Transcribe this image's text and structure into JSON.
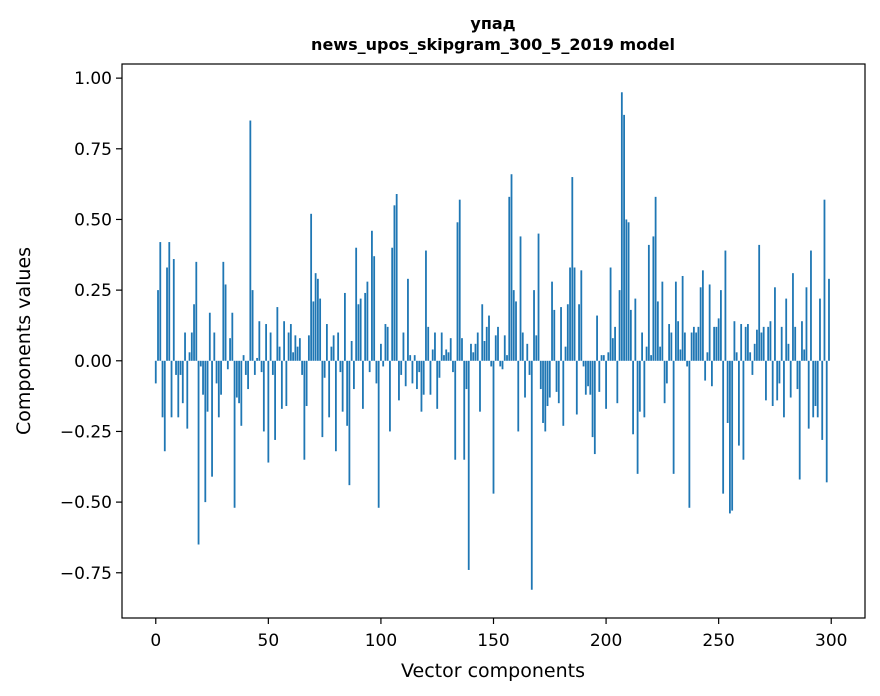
{
  "chart_data": {
    "type": "bar",
    "title": "упад",
    "subtitle": "news_upos_skipgram_300_5_2019 model",
    "xlabel": "Vector components",
    "ylabel": "Components values",
    "xlim": [
      -15,
      315
    ],
    "ylim": [
      -0.91,
      1.05
    ],
    "x_ticks": [
      0,
      50,
      100,
      150,
      200,
      250,
      300
    ],
    "y_ticks": [
      -0.75,
      -0.5,
      -0.25,
      0.0,
      0.25,
      0.5,
      0.75,
      1.0
    ],
    "x_tick_labels": [
      "0",
      "50",
      "100",
      "150",
      "200",
      "250",
      "300"
    ],
    "y_tick_labels": [
      "−0.75",
      "−0.50",
      "−0.25",
      "0.00",
      "0.25",
      "0.50",
      "0.75",
      "1.00"
    ],
    "bar_color": "#1f77b4",
    "grid": false,
    "x": [
      0,
      1,
      2,
      3,
      4,
      5,
      6,
      7,
      8,
      9,
      10,
      11,
      12,
      13,
      14,
      15,
      16,
      17,
      18,
      19,
      20,
      21,
      22,
      23,
      24,
      25,
      26,
      27,
      28,
      29,
      30,
      31,
      32,
      33,
      34,
      35,
      36,
      37,
      38,
      39,
      40,
      41,
      42,
      43,
      44,
      45,
      46,
      47,
      48,
      49,
      50,
      51,
      52,
      53,
      54,
      55,
      56,
      57,
      58,
      59,
      60,
      61,
      62,
      63,
      64,
      65,
      66,
      67,
      68,
      69,
      70,
      71,
      72,
      73,
      74,
      75,
      76,
      77,
      78,
      79,
      80,
      81,
      82,
      83,
      84,
      85,
      86,
      87,
      88,
      89,
      90,
      91,
      92,
      93,
      94,
      95,
      96,
      97,
      98,
      99,
      100,
      101,
      102,
      103,
      104,
      105,
      106,
      107,
      108,
      109,
      110,
      111,
      112,
      113,
      114,
      115,
      116,
      117,
      118,
      119,
      120,
      121,
      122,
      123,
      124,
      125,
      126,
      127,
      128,
      129,
      130,
      131,
      132,
      133,
      134,
      135,
      136,
      137,
      138,
      139,
      140,
      141,
      142,
      143,
      144,
      145,
      146,
      147,
      148,
      149,
      150,
      151,
      152,
      153,
      154,
      155,
      156,
      157,
      158,
      159,
      160,
      161,
      162,
      163,
      164,
      165,
      166,
      167,
      168,
      169,
      170,
      171,
      172,
      173,
      174,
      175,
      176,
      177,
      178,
      179,
      180,
      181,
      182,
      183,
      184,
      185,
      186,
      187,
      188,
      189,
      190,
      191,
      192,
      193,
      194,
      195,
      196,
      197,
      198,
      199,
      200,
      201,
      202,
      203,
      204,
      205,
      206,
      207,
      208,
      209,
      210,
      211,
      212,
      213,
      214,
      215,
      216,
      217,
      218,
      219,
      220,
      221,
      222,
      223,
      224,
      225,
      226,
      227,
      228,
      229,
      230,
      231,
      232,
      233,
      234,
      235,
      236,
      237,
      238,
      239,
      240,
      241,
      242,
      243,
      244,
      245,
      246,
      247,
      248,
      249,
      250,
      251,
      252,
      253,
      254,
      255,
      256,
      257,
      258,
      259,
      260,
      261,
      262,
      263,
      264,
      265,
      266,
      267,
      268,
      269,
      270,
      271,
      272,
      273,
      274,
      275,
      276,
      277,
      278,
      279,
      280,
      281,
      282,
      283,
      284,
      285,
      286,
      287,
      288,
      289,
      290,
      291,
      292,
      293,
      294,
      295,
      296,
      297,
      298,
      299
    ],
    "values": [
      -0.08,
      0.25,
      0.42,
      -0.2,
      -0.32,
      0.33,
      0.42,
      -0.2,
      0.36,
      -0.05,
      -0.2,
      -0.05,
      -0.15,
      0.1,
      -0.24,
      0.03,
      0.1,
      0.2,
      0.35,
      -0.65,
      -0.02,
      -0.12,
      -0.5,
      -0.18,
      0.17,
      -0.41,
      0.1,
      -0.08,
      -0.2,
      -0.12,
      0.35,
      0.27,
      -0.03,
      0.08,
      0.17,
      -0.52,
      -0.13,
      -0.15,
      -0.23,
      0.02,
      -0.05,
      -0.1,
      0.85,
      0.25,
      -0.05,
      0.01,
      0.14,
      -0.04,
      -0.25,
      0.13,
      -0.36,
      0.1,
      -0.05,
      -0.28,
      0.19,
      0.05,
      -0.17,
      0.14,
      -0.16,
      0.1,
      0.13,
      0.03,
      0.09,
      0.05,
      0.08,
      -0.05,
      -0.35,
      -0.16,
      0.09,
      0.52,
      0.21,
      0.31,
      0.29,
      0.22,
      -0.27,
      -0.06,
      0.13,
      -0.2,
      0.05,
      0.09,
      -0.32,
      0.1,
      -0.04,
      -0.18,
      0.24,
      -0.23,
      -0.44,
      0.07,
      -0.1,
      0.4,
      0.2,
      0.22,
      -0.17,
      0.24,
      0.28,
      -0.04,
      0.46,
      0.37,
      -0.08,
      -0.52,
      0.06,
      -0.02,
      0.13,
      0.12,
      -0.25,
      0.4,
      0.55,
      0.59,
      -0.14,
      -0.05,
      0.1,
      -0.09,
      0.29,
      0.02,
      -0.08,
      0.02,
      -0.1,
      -0.04,
      -0.18,
      -0.12,
      0.39,
      0.12,
      -0.12,
      0.04,
      0.1,
      -0.17,
      -0.06,
      0.1,
      0.02,
      0.04,
      0.03,
      0.08,
      -0.04,
      -0.35,
      0.49,
      0.57,
      0.08,
      -0.35,
      -0.1,
      -0.74,
      0.06,
      0.03,
      0.06,
      0.1,
      -0.18,
      0.2,
      0.07,
      0.12,
      0.16,
      -0.02,
      -0.47,
      0.09,
      0.12,
      -0.02,
      -0.03,
      0.09,
      0.02,
      0.58,
      0.66,
      0.25,
      0.21,
      -0.25,
      0.44,
      0.1,
      -0.13,
      0.06,
      -0.05,
      -0.81,
      0.25,
      0.09,
      0.45,
      -0.1,
      -0.22,
      -0.25,
      -0.16,
      -0.13,
      0.28,
      0.18,
      -0.11,
      -0.15,
      0.19,
      -0.23,
      0.05,
      0.2,
      0.33,
      0.65,
      0.33,
      -0.19,
      0.2,
      0.32,
      -0.02,
      -0.12,
      -0.09,
      -0.12,
      -0.27,
      -0.33,
      0.16,
      -0.11,
      0.02,
      0.02,
      -0.17,
      0.03,
      0.33,
      0.08,
      0.12,
      -0.15,
      0.25,
      0.95,
      0.87,
      0.5,
      0.49,
      0.18,
      -0.26,
      0.22,
      -0.4,
      -0.18,
      0.1,
      -0.2,
      0.05,
      0.41,
      0.02,
      0.44,
      0.58,
      0.21,
      0.05,
      0.28,
      -0.15,
      -0.08,
      0.13,
      0.1,
      -0.4,
      0.28,
      0.14,
      0.04,
      0.3,
      0.1,
      -0.02,
      -0.52,
      0.1,
      0.12,
      0.1,
      0.12,
      0.26,
      0.32,
      -0.07,
      0.03,
      0.27,
      -0.09,
      0.12,
      0.12,
      0.15,
      0.25,
      -0.47,
      0.39,
      -0.22,
      -0.54,
      -0.53,
      0.14,
      0.03,
      -0.3,
      0.13,
      -0.35,
      0.12,
      0.13,
      0.03,
      -0.05,
      0.06,
      0.11,
      0.41,
      0.1,
      0.12,
      -0.14,
      0.12,
      0.14,
      -0.16,
      0.26,
      -0.14,
      -0.08,
      0.12,
      -0.2,
      0.22,
      0.06,
      -0.13,
      0.31,
      0.12,
      -0.1,
      -0.42,
      0.14,
      0.04,
      0.26,
      -0.24,
      0.39,
      -0.2,
      -0.16,
      -0.2,
      0.22,
      -0.28,
      0.57,
      -0.43,
      0.29
    ]
  }
}
